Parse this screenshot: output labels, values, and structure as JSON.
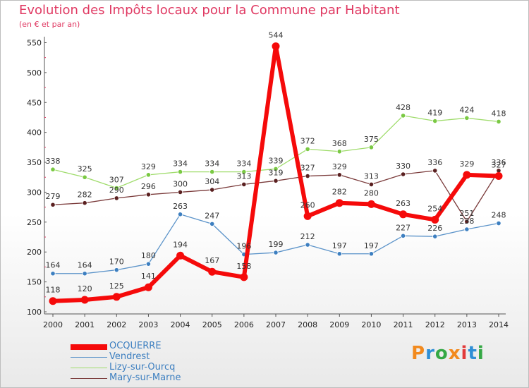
{
  "header": {
    "title": "Evolution des Impôts locaux pour la Commune par Habitant",
    "subtitle": "(en € et par an)"
  },
  "logo": {
    "text": "Proxiti",
    "colors": [
      "#f28a1e",
      "#2f8fd6",
      "#35a845",
      "#f28a1e",
      "#e23a3a",
      "#2f8fd6",
      "#35a845"
    ]
  },
  "chart_data": {
    "type": "line",
    "title": "Evolution des Impôts locaux pour la Commune par Habitant",
    "subtitle": "(en € et par an)",
    "x": [
      "2000",
      "2001",
      "2002",
      "2003",
      "2004",
      "2005",
      "2006",
      "2007",
      "2008",
      "2009",
      "2010",
      "2011",
      "2012",
      "2013",
      "2014"
    ],
    "y_ticks": [
      100,
      150,
      200,
      250,
      300,
      350,
      400,
      450,
      500,
      550
    ],
    "ylim": [
      100,
      560
    ],
    "grid": false,
    "legend_position": "bottom-left",
    "series": [
      {
        "name": "Vendrest",
        "color": "#5b93c9",
        "point_color": "#3d7fc0",
        "width": 1.3,
        "label_offset": -1,
        "values": [
          164,
          164,
          170,
          180,
          263,
          247,
          196,
          199,
          212,
          197,
          197,
          227,
          226,
          238,
          248
        ],
        "labels": [
          "164",
          "164",
          "170",
          "180",
          "263",
          "247",
          "196",
          "199",
          "212",
          "197",
          "197",
          "227",
          "226",
          "238",
          "248"
        ]
      },
      {
        "name": "Lizy-sur-Ourcq",
        "color": "#9fdc6b",
        "point_color": "#7ac943",
        "width": 1.3,
        "label_offset": -1,
        "values": [
          338,
          325,
          307,
          329,
          334,
          334,
          334,
          339,
          372,
          368,
          375,
          428,
          419,
          424,
          418
        ],
        "labels": [
          "338",
          "325",
          "307",
          "329",
          "334",
          "334",
          "334",
          "339",
          "372",
          "368",
          "375",
          "428",
          "419",
          "424",
          "418"
        ]
      },
      {
        "name": "Mary-sur-Marne",
        "color": "#7a3a3a",
        "point_color": "#5a2020",
        "width": 1.3,
        "label_offset": -1,
        "values": [
          279,
          282,
          290,
          296,
          300,
          304,
          313,
          319,
          327,
          329,
          313,
          330,
          336,
          251,
          336
        ],
        "labels": [
          "279",
          "282",
          "290",
          "296",
          "300",
          "304",
          "313",
          "319",
          "327",
          "329",
          "313",
          "330",
          "336",
          "251",
          "336"
        ]
      },
      {
        "name": "OCQUERRE",
        "color": "#f50a0a",
        "point_color": "#f50a0a",
        "width": 6,
        "label_offset": -1,
        "values": [
          118,
          120,
          125,
          141,
          194,
          167,
          158,
          544,
          260,
          282,
          280,
          263,
          254,
          329,
          327
        ],
        "labels": [
          "118",
          "120",
          "125",
          "141",
          "194",
          "167",
          "158",
          "544",
          "260",
          "282",
          "280",
          "263",
          "254",
          "329",
          "327"
        ]
      }
    ],
    "legend": [
      "OCQUERRE",
      "Vendrest",
      "Lizy-sur-Ourcq",
      "Mary-sur-Marne"
    ]
  }
}
